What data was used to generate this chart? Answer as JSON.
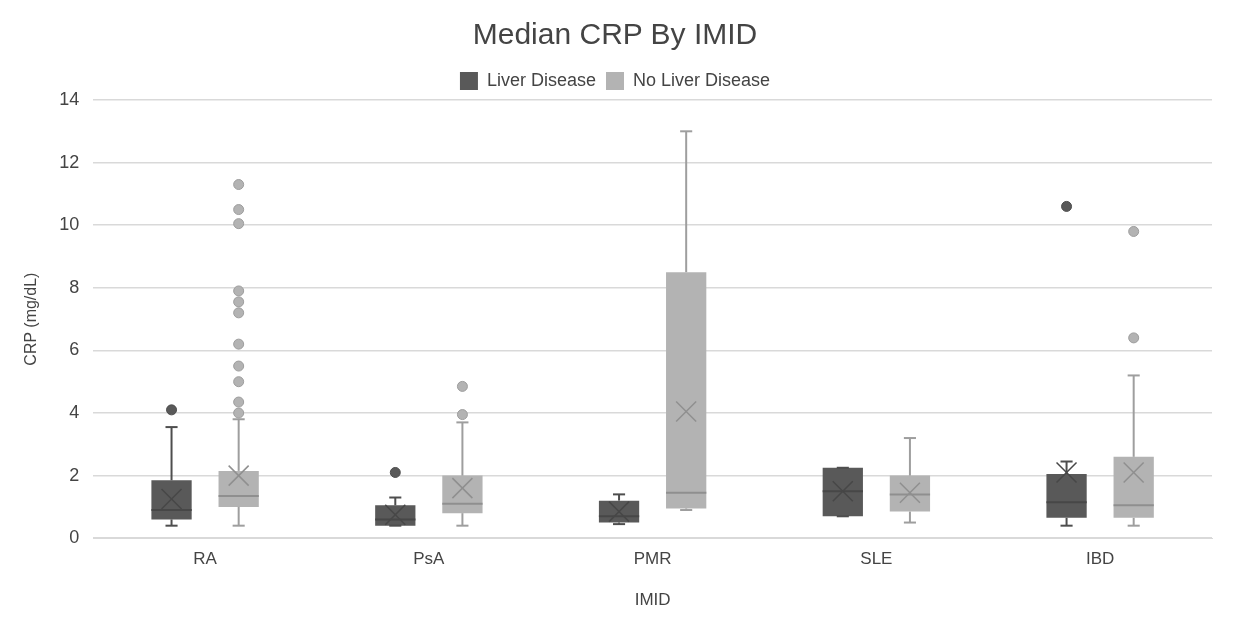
{
  "chart_data": {
    "type": "box",
    "title": "Median CRP By IMID",
    "xlabel": "IMID",
    "ylabel": "CRP (mg/dL)",
    "categories": [
      "RA",
      "PsA",
      "PMR",
      "SLE",
      "IBD"
    ],
    "ylim": [
      0,
      14
    ],
    "yticks": [
      0,
      2,
      4,
      6,
      8,
      10,
      12,
      14
    ],
    "grid": "y",
    "legend": "top",
    "series": [
      {
        "name": "Liver Disease",
        "color": "#595959",
        "boxes": [
          {
            "low": 0.4,
            "q1": 0.6,
            "median": 0.9,
            "q3": 1.85,
            "high": 3.55,
            "mean": 1.25,
            "outliers": [
              4.1
            ]
          },
          {
            "low": 0.4,
            "q1": 0.4,
            "median": 0.6,
            "q3": 1.05,
            "high": 1.3,
            "mean": 0.75,
            "outliers": [
              2.1
            ]
          },
          {
            "low": 0.45,
            "q1": 0.5,
            "median": 0.7,
            "q3": 1.2,
            "high": 1.4,
            "mean": 0.85
          },
          {
            "low": 0.7,
            "q1": 0.7,
            "median": 1.5,
            "q3": 2.25,
            "high": 2.25,
            "mean": 1.5
          },
          {
            "low": 0.4,
            "q1": 0.65,
            "median": 1.15,
            "q3": 2.05,
            "high": 2.45,
            "mean": 2.1,
            "outliers": [
              10.6
            ]
          }
        ]
      },
      {
        "name": "No Liver Disease",
        "color": "#b3b3b3",
        "boxes": [
          {
            "low": 0.4,
            "q1": 1.0,
            "median": 1.35,
            "q3": 2.15,
            "high": 3.8,
            "mean": 2.0,
            "outliers": [
              11.3,
              10.5,
              10.05,
              7.9,
              7.55,
              7.2,
              6.2,
              5.5,
              5.0,
              4.35,
              4.0
            ]
          },
          {
            "low": 0.4,
            "q1": 0.8,
            "median": 1.1,
            "q3": 2.0,
            "high": 3.7,
            "mean": 1.6,
            "outliers": [
              4.85,
              3.95
            ]
          },
          {
            "low": 0.9,
            "q1": 0.95,
            "median": 1.45,
            "q3": 8.5,
            "high": 13.0,
            "mean": 4.05
          },
          {
            "low": 0.5,
            "q1": 0.85,
            "median": 1.4,
            "q3": 2.0,
            "high": 3.2,
            "mean": 1.45
          },
          {
            "low": 0.4,
            "q1": 0.65,
            "median": 1.05,
            "q3": 2.6,
            "high": 5.2,
            "mean": 2.1,
            "outliers": [
              9.8,
              6.4
            ]
          }
        ]
      }
    ]
  }
}
